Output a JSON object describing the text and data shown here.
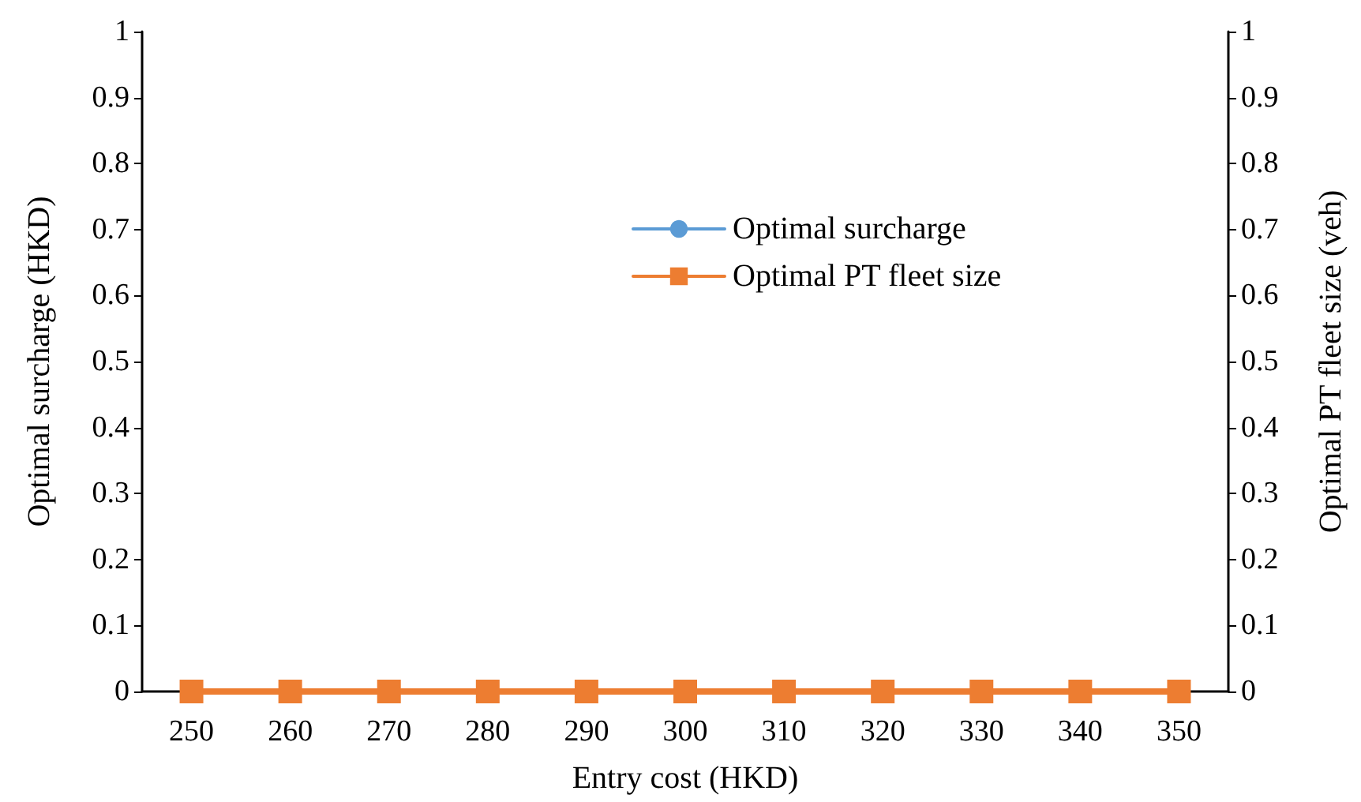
{
  "chart_data": {
    "type": "line",
    "xlabel": "Entry cost (HKD)",
    "ylabel": "Optimal surcharge (HKD)",
    "y2label": "Optimal PT fleet size (veh)",
    "categories": [
      "250",
      "260",
      "270",
      "280",
      "290",
      "300",
      "310",
      "320",
      "330",
      "340",
      "350"
    ],
    "series": [
      {
        "name": "Optimal surcharge",
        "color": "#5b9bd5",
        "marker": "circle",
        "values": [
          null,
          null,
          null,
          null,
          null,
          null,
          null,
          null,
          null,
          null,
          null
        ]
      },
      {
        "name": "Optimal PT fleet size",
        "color": "#ed7d31",
        "marker": "square",
        "axis": "y2",
        "values": [
          0,
          0,
          0,
          0,
          0,
          0,
          0,
          0,
          0,
          0,
          0
        ]
      }
    ],
    "ylim": [
      0,
      1
    ],
    "yticks": [
      0,
      0.1,
      0.2,
      0.3,
      0.4,
      0.5,
      0.6,
      0.7,
      0.8,
      0.9,
      1
    ],
    "y2lim": [
      0,
      1
    ],
    "y2ticks": [
      0,
      0.1,
      0.2,
      0.3,
      0.4,
      0.5,
      0.6,
      0.7,
      0.8,
      0.9,
      1
    ],
    "grid": false,
    "legend": "right",
    "line_style": "solid"
  }
}
